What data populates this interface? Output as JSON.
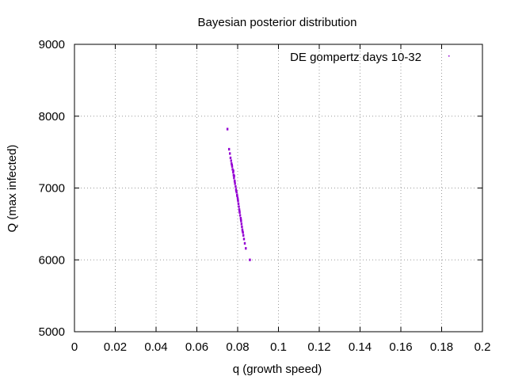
{
  "chart_data": {
    "type": "scatter",
    "title": "Bayesian posterior distribution",
    "xlabel": "q (growth speed)",
    "ylabel": "Q (max infected)",
    "xlim": [
      0,
      0.2
    ],
    "ylim": [
      5000,
      9000
    ],
    "xticks": [
      "0",
      "0.02",
      "0.04",
      "0.06",
      "0.08",
      "0.1",
      "0.12",
      "0.14",
      "0.16",
      "0.18",
      "0.2"
    ],
    "yticks": [
      "5000",
      "6000",
      "7000",
      "8000",
      "9000"
    ],
    "grid": true,
    "legend_position": "top-right",
    "series": [
      {
        "name": "DE gompertz days 10-32",
        "color": "#9400d3",
        "points": [
          [
            0.075,
            7820
          ],
          [
            0.0758,
            7540
          ],
          [
            0.0762,
            7480
          ],
          [
            0.0765,
            7420
          ],
          [
            0.0768,
            7380
          ],
          [
            0.077,
            7340
          ],
          [
            0.0773,
            7300
          ],
          [
            0.0775,
            7260
          ],
          [
            0.0778,
            7220
          ],
          [
            0.078,
            7180
          ],
          [
            0.0782,
            7140
          ],
          [
            0.0785,
            7100
          ],
          [
            0.0787,
            7060
          ],
          [
            0.079,
            7020
          ],
          [
            0.0792,
            6980
          ],
          [
            0.0795,
            6940
          ],
          [
            0.0797,
            6900
          ],
          [
            0.08,
            6860
          ],
          [
            0.0802,
            6820
          ],
          [
            0.0804,
            6780
          ],
          [
            0.0806,
            6740
          ],
          [
            0.0808,
            6700
          ],
          [
            0.081,
            6660
          ],
          [
            0.0812,
            6620
          ],
          [
            0.0815,
            6580
          ],
          [
            0.0817,
            6540
          ],
          [
            0.0819,
            6500
          ],
          [
            0.0821,
            6460
          ],
          [
            0.0823,
            6420
          ],
          [
            0.0826,
            6380
          ],
          [
            0.0828,
            6340
          ],
          [
            0.0831,
            6290
          ],
          [
            0.0835,
            6230
          ],
          [
            0.084,
            6160
          ],
          [
            0.086,
            6000
          ],
          [
            0.0772,
            7320
          ],
          [
            0.0779,
            7240
          ],
          [
            0.0786,
            7090
          ],
          [
            0.0793,
            6960
          ],
          [
            0.0801,
            6840
          ],
          [
            0.0809,
            6680
          ],
          [
            0.0816,
            6560
          ],
          [
            0.0824,
            6400
          ],
          [
            0.0783,
            7170
          ],
          [
            0.0798,
            6890
          ]
        ]
      }
    ]
  }
}
